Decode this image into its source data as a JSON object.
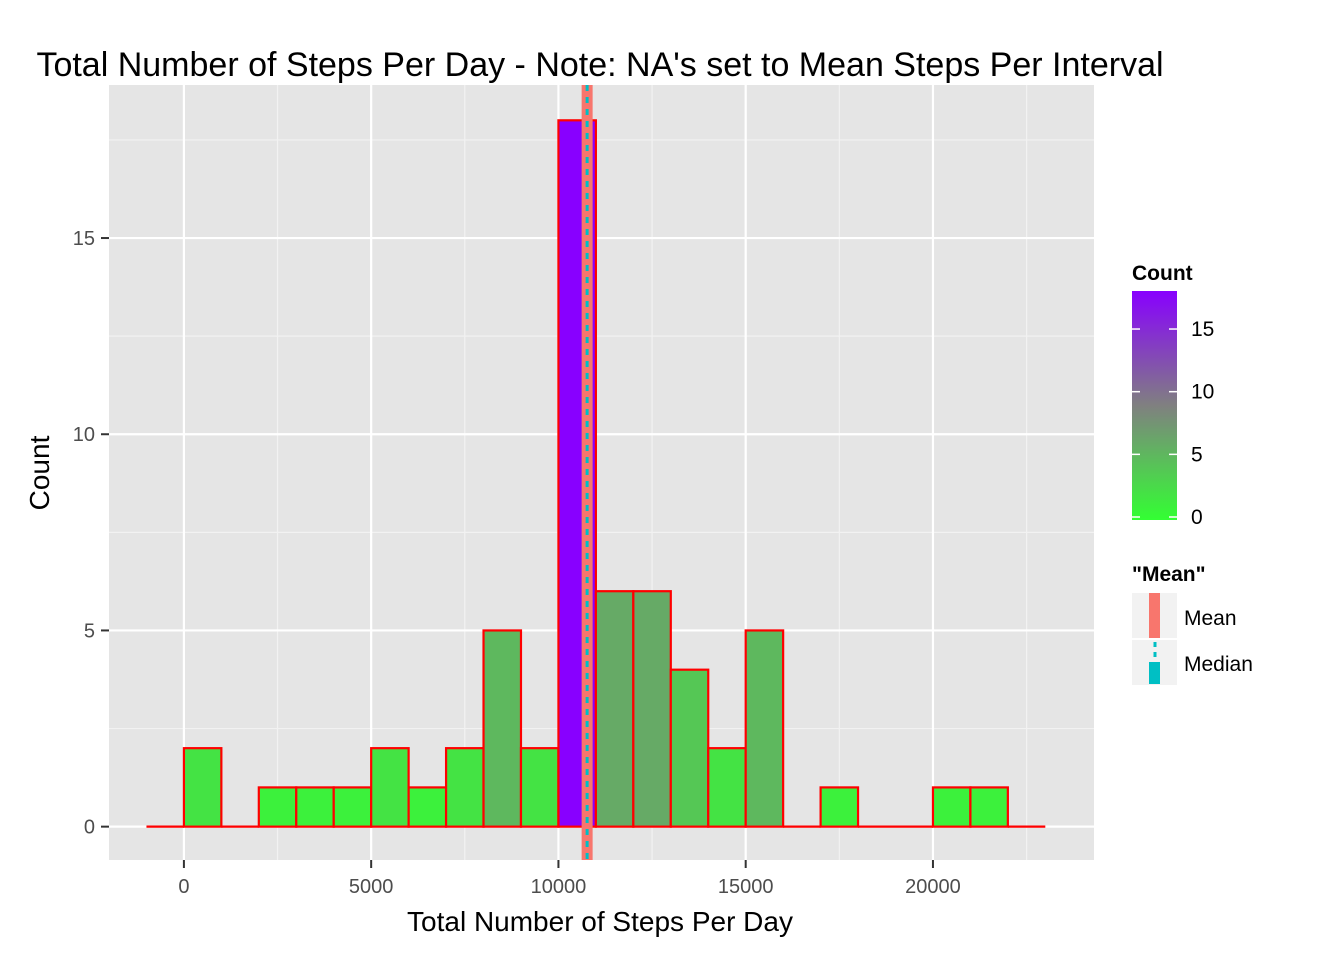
{
  "chart_data": {
    "type": "bar",
    "title": "Total Number of Steps Per Day - Note: NA's set to Mean Steps Per Interval",
    "xlabel": "Total Number of Steps Per Day",
    "ylabel": "Count",
    "xlim": [
      -2000,
      24300
    ],
    "ylim": [
      -0.85,
      18.9
    ],
    "x_ticks": [
      0,
      5000,
      10000,
      15000,
      20000
    ],
    "x_tick_labels": [
      "0",
      "5000",
      "10000",
      "15000",
      "20000"
    ],
    "y_ticks": [
      0,
      5,
      10,
      15
    ],
    "y_tick_labels": [
      "0",
      "5",
      "10",
      "15"
    ],
    "grid": true,
    "bin_width": 1000,
    "bins": [
      {
        "start": -1000,
        "end": 0,
        "count": 0
      },
      {
        "start": 0,
        "end": 1000,
        "count": 2
      },
      {
        "start": 1000,
        "end": 2000,
        "count": 0
      },
      {
        "start": 2000,
        "end": 3000,
        "count": 1
      },
      {
        "start": 3000,
        "end": 4000,
        "count": 1
      },
      {
        "start": 4000,
        "end": 5000,
        "count": 1
      },
      {
        "start": 5000,
        "end": 6000,
        "count": 2
      },
      {
        "start": 6000,
        "end": 7000,
        "count": 1
      },
      {
        "start": 7000,
        "end": 8000,
        "count": 2
      },
      {
        "start": 8000,
        "end": 9000,
        "count": 5
      },
      {
        "start": 9000,
        "end": 10000,
        "count": 2
      },
      {
        "start": 10000,
        "end": 11000,
        "count": 18
      },
      {
        "start": 11000,
        "end": 12000,
        "count": 6
      },
      {
        "start": 12000,
        "end": 13000,
        "count": 6
      },
      {
        "start": 13000,
        "end": 14000,
        "count": 4
      },
      {
        "start": 14000,
        "end": 15000,
        "count": 2
      },
      {
        "start": 15000,
        "end": 16000,
        "count": 5
      },
      {
        "start": 16000,
        "end": 17000,
        "count": 0
      },
      {
        "start": 17000,
        "end": 18000,
        "count": 1
      },
      {
        "start": 18000,
        "end": 19000,
        "count": 0
      },
      {
        "start": 19000,
        "end": 20000,
        "count": 0
      },
      {
        "start": 20000,
        "end": 21000,
        "count": 1
      },
      {
        "start": 21000,
        "end": 22000,
        "count": 1
      },
      {
        "start": 22000,
        "end": 23000,
        "count": 0
      }
    ],
    "mean": 10766.19,
    "median": 10766.19,
    "colors": {
      "panel_bg": "#e5e5e5",
      "grid_major": "#ffffff",
      "grid_minor": "#f2f2f2",
      "bar_outline": "#ff0000",
      "fill_low": "#33ff33",
      "fill_mid": "#808080",
      "fill_high": "#8800ff",
      "mean_line": "#f8766d",
      "median_line": "#00bfc4"
    },
    "legend_position": "right",
    "fill_legend": {
      "title": "Count",
      "ticks": [
        0,
        5,
        10,
        15
      ],
      "tick_labels": [
        "0",
        "5",
        "10",
        "15"
      ],
      "range": [
        0,
        18
      ]
    },
    "line_legend": {
      "title": "\"Mean\"",
      "items": [
        "Mean",
        "Median"
      ]
    }
  }
}
